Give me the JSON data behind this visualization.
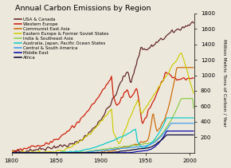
{
  "title": "Annual Carbon Emissions by Region",
  "ylabel": "Million Metric Tons of Carbon / Year",
  "xlim": [
    1800,
    2005
  ],
  "ylim": [
    0,
    1800
  ],
  "yticks": [
    200,
    400,
    600,
    800,
    1000,
    1200,
    1400,
    1600,
    1800
  ],
  "xticks": [
    1800,
    1850,
    1900,
    1950,
    2000
  ],
  "series": [
    {
      "name": "USA & Canada",
      "color": "#5C2020"
    },
    {
      "name": "Western Europe",
      "color": "#CC1500"
    },
    {
      "name": "Communist East Asia",
      "color": "#CC6600"
    },
    {
      "name": "Eastern Europe & Former Soviet States",
      "color": "#CCCC00"
    },
    {
      "name": "India & Southeast Asia",
      "color": "#88CC44"
    },
    {
      "name": "Australia, Japan, Pacific Ocean States",
      "color": "#00CCCC"
    },
    {
      "name": "Central & South America",
      "color": "#3399EE"
    },
    {
      "name": "Middle East",
      "color": "#0000AA"
    },
    {
      "name": "Africa",
      "color": "#000033"
    }
  ],
  "background": "#EDE8DC"
}
